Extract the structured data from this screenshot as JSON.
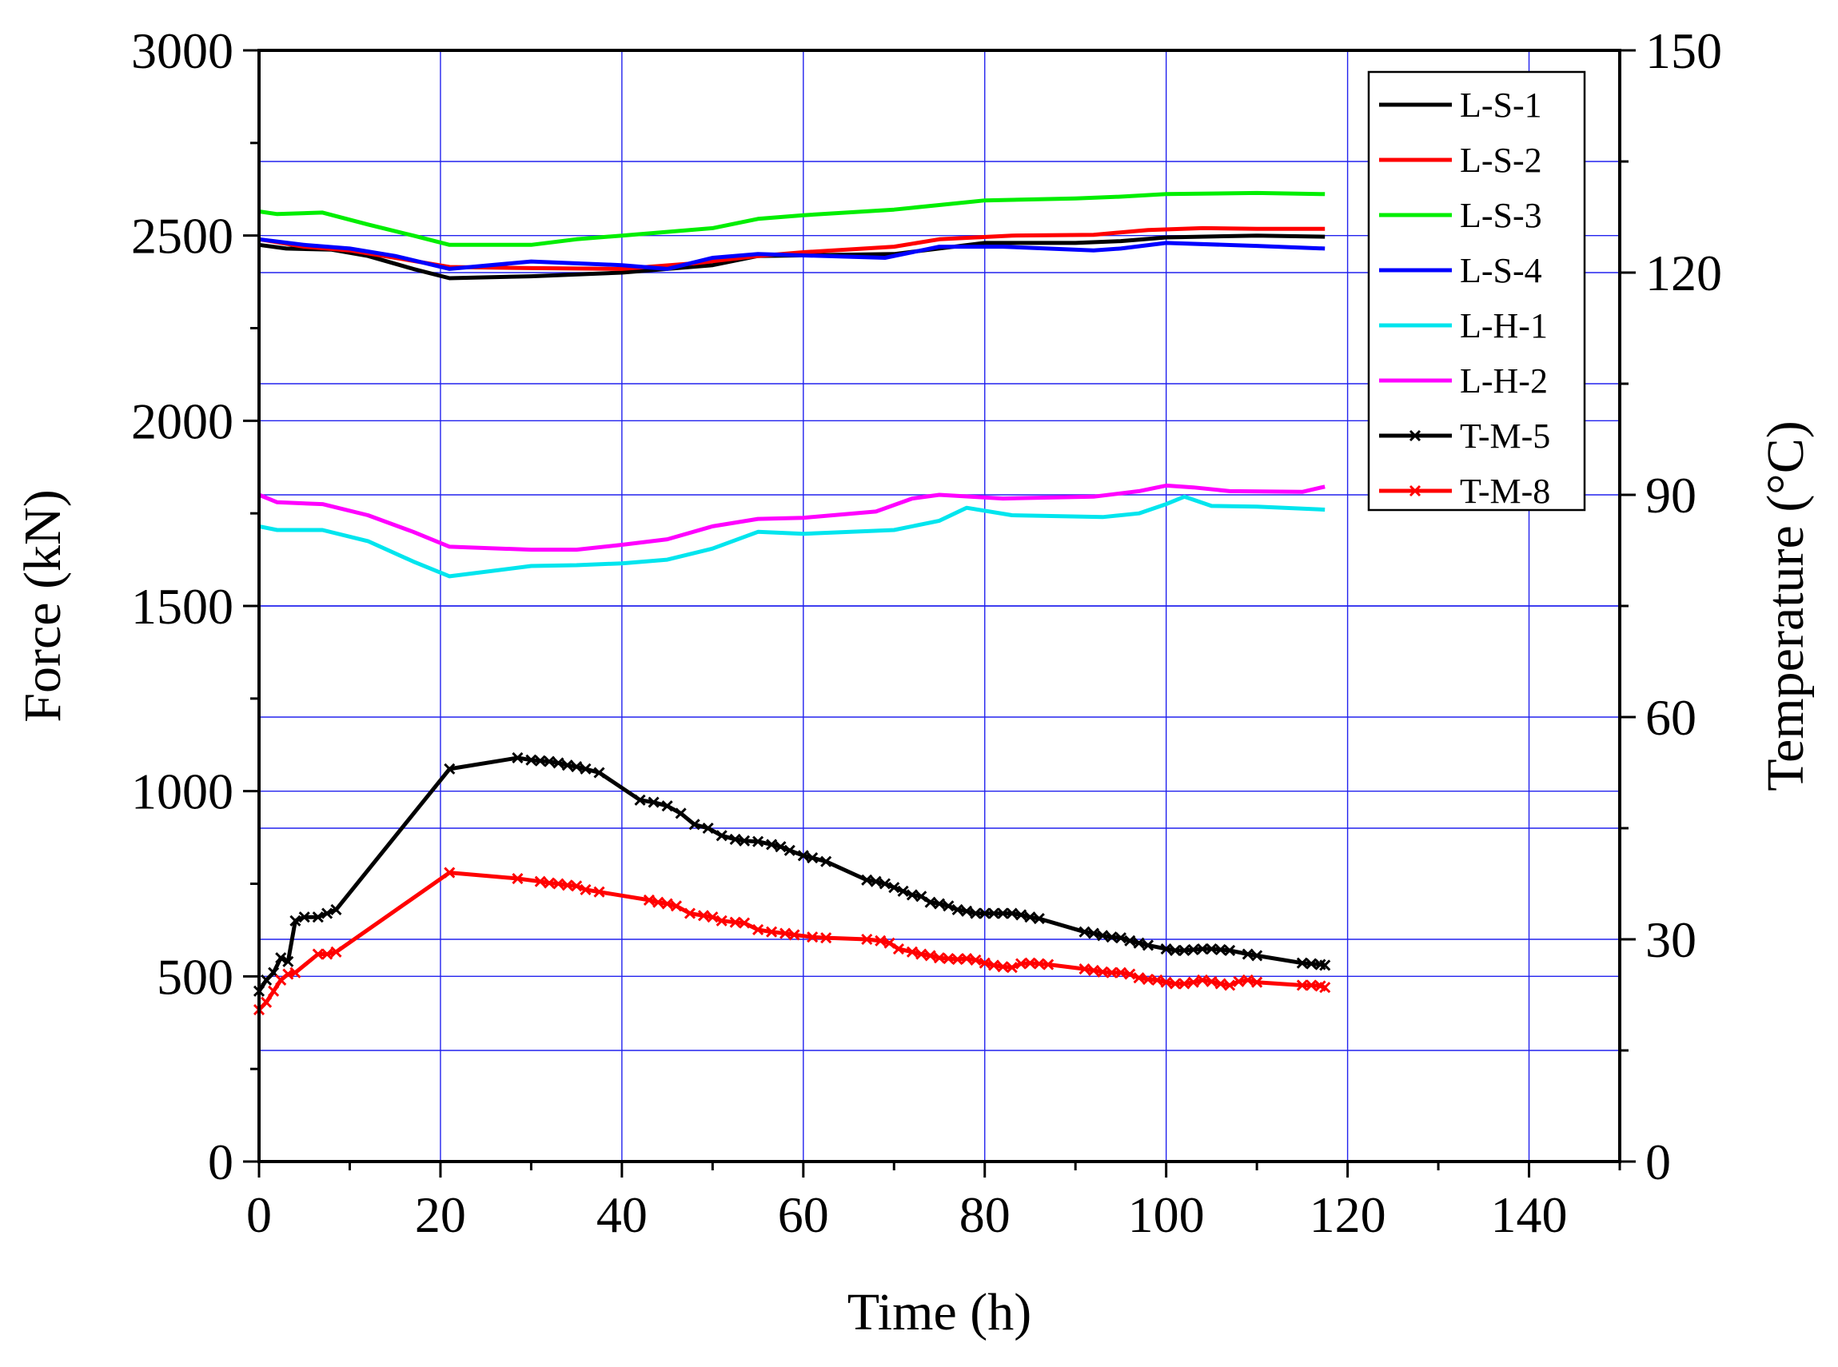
{
  "chart_data": {
    "type": "line",
    "xlabel": "Time (h)",
    "ylabel": "Force (kN)",
    "y2label": "Temperature (°C)",
    "xlim": [
      0,
      150
    ],
    "ylim": [
      0,
      3000
    ],
    "y2lim": [
      0,
      150
    ],
    "grid": true,
    "legend_position": "top-right",
    "x_ticks": [
      "0",
      "20",
      "40",
      "60",
      "80",
      "100",
      "120",
      "140"
    ],
    "y_ticks": [
      "0",
      "500",
      "1000",
      "1500",
      "2000",
      "2500",
      "3000"
    ],
    "y2_ticks": [
      "0",
      "30",
      "60",
      "90",
      "120",
      "150"
    ],
    "series": [
      {
        "name": "L-S-1",
        "axis": "left",
        "color": "#000000",
        "marker": "none",
        "points": [
          [
            0,
            2475
          ],
          [
            3,
            2465
          ],
          [
            8,
            2462
          ],
          [
            12,
            2445
          ],
          [
            17,
            2410
          ],
          [
            21,
            2385
          ],
          [
            30,
            2390
          ],
          [
            40,
            2400
          ],
          [
            50,
            2420
          ],
          [
            55,
            2445
          ],
          [
            70,
            2450
          ],
          [
            80,
            2480
          ],
          [
            90,
            2480
          ],
          [
            95,
            2485
          ],
          [
            100,
            2495
          ],
          [
            110,
            2500
          ],
          [
            117.5,
            2497
          ]
        ]
      },
      {
        "name": "L-S-2",
        "axis": "left",
        "color": "#ff0000",
        "marker": "none",
        "points": [
          [
            0,
            2490
          ],
          [
            5,
            2470
          ],
          [
            10,
            2460
          ],
          [
            15,
            2440
          ],
          [
            21,
            2415
          ],
          [
            30,
            2412
          ],
          [
            40,
            2410
          ],
          [
            48,
            2425
          ],
          [
            55,
            2445
          ],
          [
            60,
            2455
          ],
          [
            70,
            2470
          ],
          [
            75,
            2490
          ],
          [
            83,
            2500
          ],
          [
            92,
            2502
          ],
          [
            98,
            2515
          ],
          [
            104,
            2520
          ],
          [
            110,
            2518
          ],
          [
            117.5,
            2518
          ]
        ]
      },
      {
        "name": "L-S-3",
        "axis": "left",
        "color": "#00ee00",
        "marker": "none",
        "points": [
          [
            0,
            2565
          ],
          [
            2,
            2558
          ],
          [
            7,
            2562
          ],
          [
            12,
            2530
          ],
          [
            17,
            2500
          ],
          [
            21,
            2475
          ],
          [
            30,
            2475
          ],
          [
            35,
            2490
          ],
          [
            40,
            2500
          ],
          [
            50,
            2520
          ],
          [
            55,
            2545
          ],
          [
            60,
            2555
          ],
          [
            70,
            2570
          ],
          [
            80,
            2595
          ],
          [
            90,
            2600
          ],
          [
            95,
            2605
          ],
          [
            100,
            2612
          ],
          [
            110,
            2615
          ],
          [
            117.5,
            2612
          ]
        ]
      },
      {
        "name": "L-S-4",
        "axis": "left",
        "color": "#0000ff",
        "marker": "none",
        "points": [
          [
            0,
            2490
          ],
          [
            5,
            2475
          ],
          [
            10,
            2465
          ],
          [
            15,
            2445
          ],
          [
            21,
            2410
          ],
          [
            30,
            2430
          ],
          [
            40,
            2420
          ],
          [
            45,
            2410
          ],
          [
            50,
            2440
          ],
          [
            55,
            2450
          ],
          [
            69,
            2440
          ],
          [
            75,
            2470
          ],
          [
            82,
            2470
          ],
          [
            92,
            2460
          ],
          [
            95,
            2465
          ],
          [
            100,
            2480
          ],
          [
            110,
            2472
          ],
          [
            117.5,
            2465
          ]
        ]
      },
      {
        "name": "L-H-1",
        "axis": "left",
        "color": "#00e5ee",
        "marker": "none",
        "points": [
          [
            0,
            1715
          ],
          [
            2,
            1705
          ],
          [
            7,
            1705
          ],
          [
            12,
            1675
          ],
          [
            17,
            1620
          ],
          [
            21,
            1580
          ],
          [
            30,
            1608
          ],
          [
            35,
            1610
          ],
          [
            40,
            1615
          ],
          [
            45,
            1625
          ],
          [
            50,
            1655
          ],
          [
            55,
            1700
          ],
          [
            60,
            1695
          ],
          [
            70,
            1705
          ],
          [
            75,
            1730
          ],
          [
            78,
            1765
          ],
          [
            83,
            1745
          ],
          [
            93,
            1740
          ],
          [
            97,
            1750
          ],
          [
            100,
            1775
          ],
          [
            102,
            1795
          ],
          [
            105,
            1770
          ],
          [
            110,
            1768
          ],
          [
            117.5,
            1760
          ]
        ]
      },
      {
        "name": "L-H-2",
        "axis": "left",
        "color": "#ff00ff",
        "marker": "none",
        "points": [
          [
            0,
            1800
          ],
          [
            2,
            1780
          ],
          [
            7,
            1775
          ],
          [
            12,
            1745
          ],
          [
            17,
            1700
          ],
          [
            21,
            1660
          ],
          [
            30,
            1652
          ],
          [
            35,
            1652
          ],
          [
            40,
            1665
          ],
          [
            45,
            1680
          ],
          [
            50,
            1715
          ],
          [
            55,
            1735
          ],
          [
            60,
            1738
          ],
          [
            68,
            1755
          ],
          [
            72,
            1790
          ],
          [
            75,
            1800
          ],
          [
            82,
            1790
          ],
          [
            92,
            1795
          ],
          [
            97,
            1810
          ],
          [
            100,
            1825
          ],
          [
            103,
            1820
          ],
          [
            107,
            1810
          ],
          [
            115,
            1808
          ],
          [
            117.5,
            1822
          ]
        ]
      },
      {
        "name": "T-M-5",
        "axis": "right",
        "color": "#000000",
        "marker": "x",
        "points": [
          [
            0,
            23
          ],
          [
            0.8,
            24.5
          ],
          [
            1.6,
            25.5
          ],
          [
            2.4,
            27.5
          ],
          [
            3.2,
            27
          ],
          [
            4,
            32.5
          ],
          [
            5,
            33
          ],
          [
            6.5,
            33
          ],
          [
            7.5,
            33.5
          ],
          [
            8.5,
            34
          ],
          [
            21,
            53
          ],
          [
            28.5,
            54.5
          ],
          [
            30,
            54.2
          ],
          [
            31,
            54.1
          ],
          [
            32,
            54
          ],
          [
            33,
            53.8
          ],
          [
            34,
            53.5
          ],
          [
            35,
            53.3
          ],
          [
            36,
            53
          ],
          [
            37.5,
            52.5
          ],
          [
            42,
            48.8
          ],
          [
            43.5,
            48.5
          ],
          [
            45,
            48
          ],
          [
            46.5,
            47
          ],
          [
            48,
            45.5
          ],
          [
            49.5,
            45
          ],
          [
            51,
            44
          ],
          [
            52.5,
            43.5
          ],
          [
            53.5,
            43.3
          ],
          [
            55,
            43.2
          ],
          [
            56.5,
            42.8
          ],
          [
            57.5,
            42.5
          ],
          [
            58.5,
            42
          ],
          [
            60,
            41.3
          ],
          [
            61,
            41
          ],
          [
            62.5,
            40.5
          ],
          [
            67,
            38
          ],
          [
            68,
            37.8
          ],
          [
            69,
            37.5
          ],
          [
            70,
            37
          ],
          [
            71,
            36.5
          ],
          [
            72,
            36
          ],
          [
            73,
            35.8
          ],
          [
            74,
            35
          ],
          [
            75,
            34.8
          ],
          [
            76,
            34.5
          ],
          [
            77,
            34
          ],
          [
            78,
            33.8
          ],
          [
            79,
            33.5
          ],
          [
            80,
            33.5
          ],
          [
            81,
            33.5
          ],
          [
            82,
            33.5
          ],
          [
            83,
            33.5
          ],
          [
            84,
            33.3
          ],
          [
            85,
            33
          ],
          [
            86,
            32.8
          ],
          [
            91,
            31
          ],
          [
            92,
            30.8
          ],
          [
            93,
            30.5
          ],
          [
            94,
            30.3
          ],
          [
            95,
            30.2
          ],
          [
            96,
            29.8
          ],
          [
            97,
            29.5
          ],
          [
            98,
            29.2
          ],
          [
            100,
            28.7
          ],
          [
            101,
            28.5
          ],
          [
            102,
            28.5
          ],
          [
            103,
            28.6
          ],
          [
            104,
            28.7
          ],
          [
            105,
            28.7
          ],
          [
            106,
            28.6
          ],
          [
            107,
            28.5
          ],
          [
            109,
            28
          ],
          [
            110,
            27.8
          ],
          [
            115,
            26.8
          ],
          [
            116,
            26.7
          ],
          [
            117,
            26.6
          ],
          [
            117.5,
            26.5
          ]
        ]
      },
      {
        "name": "T-M-8",
        "axis": "right",
        "color": "#ff0000",
        "marker": "x",
        "points": [
          [
            0,
            20.5
          ],
          [
            0.8,
            21.5
          ],
          [
            1.6,
            23
          ],
          [
            2.4,
            24.5
          ],
          [
            3.2,
            25.3
          ],
          [
            4,
            25.5
          ],
          [
            6.5,
            28
          ],
          [
            7.5,
            28
          ],
          [
            8.5,
            28.3
          ],
          [
            21,
            39
          ],
          [
            28.5,
            38.2
          ],
          [
            31,
            37.8
          ],
          [
            32,
            37.6
          ],
          [
            33,
            37.5
          ],
          [
            34,
            37.3
          ],
          [
            35,
            37.2
          ],
          [
            36,
            36.7
          ],
          [
            37.5,
            36.4
          ],
          [
            43,
            35.3
          ],
          [
            44,
            35
          ],
          [
            45,
            34.8
          ],
          [
            46,
            34.5
          ],
          [
            47.5,
            33.5
          ],
          [
            49,
            33.2
          ],
          [
            50,
            33
          ],
          [
            51,
            32.5
          ],
          [
            52.5,
            32.3
          ],
          [
            53.5,
            32.2
          ],
          [
            55,
            31.3
          ],
          [
            56.5,
            31
          ],
          [
            58,
            30.8
          ],
          [
            59,
            30.6
          ],
          [
            61,
            30.3
          ],
          [
            62.5,
            30.2
          ],
          [
            67,
            30
          ],
          [
            68.5,
            29.8
          ],
          [
            69.5,
            29.5
          ],
          [
            70.5,
            28.7
          ],
          [
            72,
            28.3
          ],
          [
            73,
            28
          ],
          [
            74,
            27.8
          ],
          [
            75,
            27.5
          ],
          [
            76,
            27.4
          ],
          [
            77,
            27.3
          ],
          [
            78,
            27.4
          ],
          [
            79,
            27.2
          ],
          [
            80,
            26.8
          ],
          [
            81,
            26.5
          ],
          [
            82,
            26.3
          ],
          [
            83,
            26.2
          ],
          [
            84,
            26.7
          ],
          [
            85,
            26.8
          ],
          [
            86,
            26.7
          ],
          [
            87,
            26.6
          ],
          [
            91,
            26
          ],
          [
            92,
            25.8
          ],
          [
            93,
            25.6
          ],
          [
            94,
            25.5
          ],
          [
            95,
            25.5
          ],
          [
            96,
            25.3
          ],
          [
            97,
            24.8
          ],
          [
            98,
            24.6
          ],
          [
            99,
            24.5
          ],
          [
            100,
            24.2
          ],
          [
            101,
            24
          ],
          [
            102,
            24
          ],
          [
            103,
            24.2
          ],
          [
            104,
            24.5
          ],
          [
            105,
            24.3
          ],
          [
            106,
            24
          ],
          [
            107,
            23.8
          ],
          [
            108,
            24.3
          ],
          [
            109,
            24.5
          ],
          [
            110,
            24.2
          ],
          [
            115,
            23.8
          ],
          [
            116,
            23.8
          ],
          [
            117,
            23.7
          ],
          [
            117.5,
            23.5
          ]
        ]
      }
    ]
  }
}
